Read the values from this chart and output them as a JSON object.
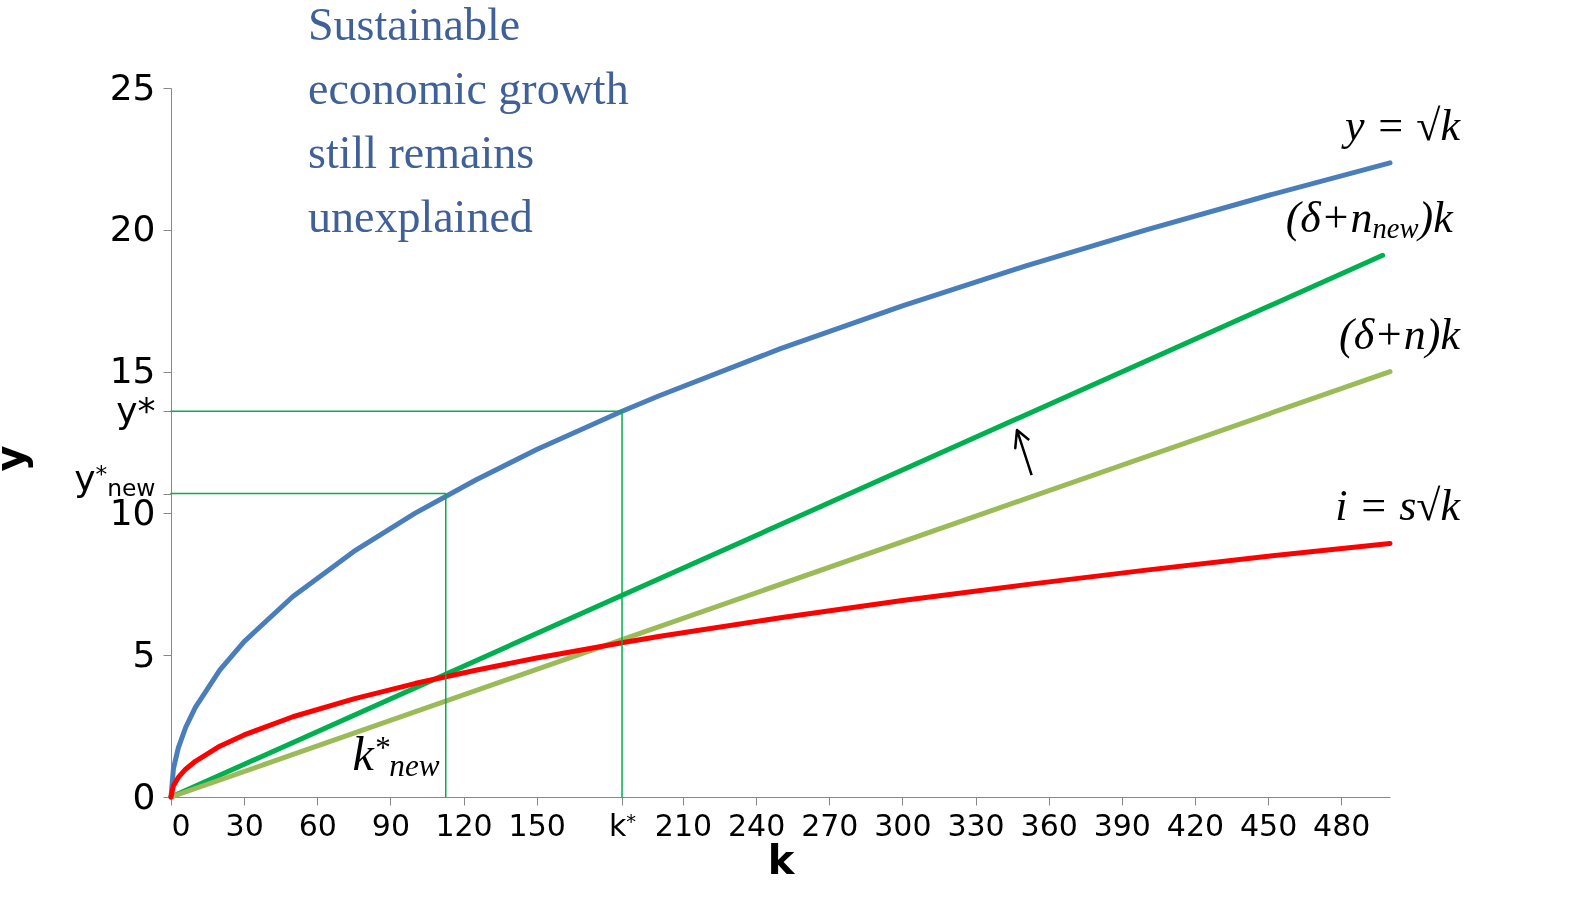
{
  "chart_data": {
    "type": "line",
    "xlabel": "k",
    "ylabel": "y",
    "xlim": [
      0,
      500
    ],
    "ylim": [
      0,
      25
    ],
    "xticks": [
      0,
      30,
      60,
      90,
      120,
      150,
      {
        "value": 185,
        "label": "k$^{*}$"
      },
      210,
      240,
      270,
      300,
      330,
      360,
      390,
      420,
      450,
      480
    ],
    "yticks": [
      0,
      5,
      10,
      15,
      20,
      25,
      {
        "value": 13.6,
        "label": "y*"
      },
      {
        "value": 10.7,
        "label": "y$^{*}$$_{new}$"
      }
    ],
    "grid": false,
    "series": [
      {
        "name": "y = √k",
        "color": "#4a7ebb",
        "x": [
          0,
          1,
          3,
          6,
          10,
          20,
          30,
          50,
          75,
          100,
          125,
          150,
          185,
          200,
          250,
          300,
          350,
          400,
          450,
          500
        ],
        "values": [
          0,
          1,
          1.73,
          2.45,
          3.16,
          4.47,
          5.48,
          7.07,
          8.66,
          10,
          11.18,
          12.25,
          13.6,
          14.14,
          15.81,
          17.32,
          18.71,
          20,
          21.21,
          22.36
        ]
      },
      {
        "name": "(δ+n$_{new}$)k",
        "color": "#00b050",
        "x": [
          0,
          497
        ],
        "values": [
          0,
          19.1
        ]
      },
      {
        "name": "(δ+n)k",
        "color": "#9bbb59",
        "x": [
          0,
          500
        ],
        "values": [
          0,
          15
        ]
      },
      {
        "name": "i = s√k",
        "color": "#ff0000",
        "x": [
          0,
          1,
          3,
          6,
          10,
          20,
          30,
          50,
          75,
          100,
          125,
          150,
          185,
          200,
          250,
          300,
          350,
          400,
          450,
          500
        ],
        "values": [
          0,
          0.4,
          0.69,
          0.98,
          1.26,
          1.79,
          2.19,
          2.83,
          3.46,
          4,
          4.47,
          4.9,
          5.44,
          5.66,
          6.32,
          6.93,
          7.48,
          8,
          8.49,
          8.94
        ]
      },
      {
        "color": "#00b050",
        "x": [
          0,
          185,
          185
        ],
        "values": [
          13.6,
          13.6,
          0
        ]
      },
      {
        "color": "#00b050",
        "x": [
          0,
          112.7,
          112.7
        ],
        "values": [
          10.7,
          10.7,
          0
        ]
      }
    ],
    "annotations": [
      "Sustainable economic growth still remains unexplained",
      "k$^{*}$$_{new}$"
    ]
  }
}
